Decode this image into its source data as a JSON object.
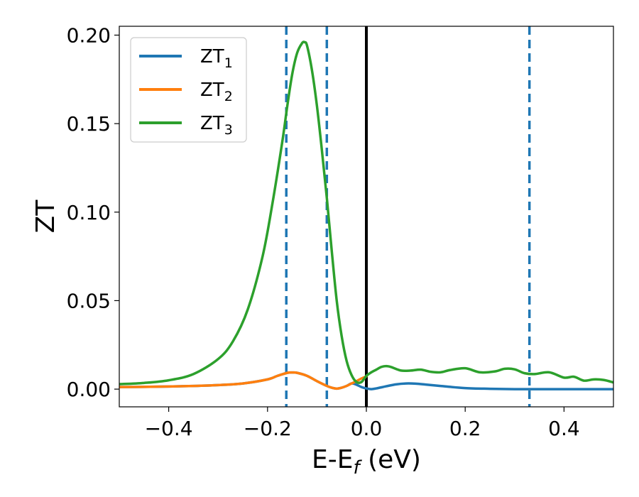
{
  "chart_data": {
    "type": "line",
    "xlabel": "E-E",
    "xlabel_subscript": "f",
    "xlabel_unit": " (eV)",
    "ylabel": "ZT",
    "xlim": [
      -0.5,
      0.5
    ],
    "ylim": [
      -0.01,
      0.205
    ],
    "x_ticks": [
      -0.4,
      -0.2,
      0.0,
      0.2,
      0.4
    ],
    "x_tick_labels": [
      "−0.4",
      "−0.2",
      "0.0",
      "0.2",
      "0.4"
    ],
    "y_ticks": [
      0.0,
      0.05,
      0.1,
      0.15,
      0.2
    ],
    "y_tick_labels": [
      "0.00",
      "0.05",
      "0.10",
      "0.15",
      "0.20"
    ],
    "grid": false,
    "legend_position": "top-left",
    "vertical_solid_lines": [
      {
        "x": 0.0,
        "color": "#000000"
      }
    ],
    "vertical_dashed_lines": [
      {
        "x": -0.162,
        "color": "#1f77b4"
      },
      {
        "x": -0.08,
        "color": "#1f77b4"
      },
      {
        "x": 0.33,
        "color": "#1f77b4"
      }
    ],
    "series": [
      {
        "name": "ZT",
        "subscript": "1",
        "color": "#1f77b4",
        "x": [
          -0.5,
          -0.45,
          -0.4,
          -0.35,
          -0.3,
          -0.25,
          -0.2,
          -0.18,
          -0.16,
          -0.15,
          -0.14,
          -0.12,
          -0.1,
          -0.08,
          -0.07,
          -0.06,
          -0.05,
          -0.04,
          -0.03,
          -0.02,
          -0.01,
          0.0,
          0.01,
          0.02,
          0.04,
          0.06,
          0.08,
          0.1,
          0.12,
          0.15,
          0.2,
          0.25,
          0.3,
          0.35,
          0.4,
          0.45,
          0.5
        ],
        "y": [
          0.0012,
          0.0013,
          0.0015,
          0.0018,
          0.0023,
          0.0032,
          0.0055,
          0.0075,
          0.0092,
          0.0094,
          0.0092,
          0.0075,
          0.0045,
          0.0018,
          0.0008,
          0.0003,
          0.0008,
          0.0018,
          0.0032,
          0.0025,
          0.0012,
          0.0004,
          0.0,
          0.0004,
          0.0016,
          0.0027,
          0.0032,
          0.0031,
          0.0026,
          0.0018,
          0.0006,
          0.0002,
          0.0,
          0.0,
          0.0,
          0.0,
          0.0
        ]
      },
      {
        "name": "ZT",
        "subscript": "2",
        "color": "#ff7f0e",
        "x": [
          -0.5,
          -0.45,
          -0.4,
          -0.35,
          -0.3,
          -0.25,
          -0.2,
          -0.18,
          -0.16,
          -0.15,
          -0.14,
          -0.12,
          -0.1,
          -0.08,
          -0.07,
          -0.06,
          -0.05,
          -0.04,
          -0.03,
          -0.02,
          -0.01,
          0.0
        ],
        "y": [
          0.0012,
          0.0013,
          0.0015,
          0.0018,
          0.0023,
          0.0032,
          0.0055,
          0.0075,
          0.0092,
          0.0094,
          0.0092,
          0.0075,
          0.0045,
          0.0018,
          0.0008,
          0.0003,
          0.0008,
          0.0018,
          0.0032,
          0.0045,
          0.006,
          0.0072
        ]
      },
      {
        "name": "ZT",
        "subscript": "3",
        "color": "#2ca02c",
        "x": [
          -0.5,
          -0.45,
          -0.4,
          -0.35,
          -0.3,
          -0.27,
          -0.24,
          -0.21,
          -0.19,
          -0.17,
          -0.16,
          -0.15,
          -0.14,
          -0.13,
          -0.125,
          -0.12,
          -0.11,
          -0.1,
          -0.09,
          -0.08,
          -0.07,
          -0.06,
          -0.05,
          -0.04,
          -0.03,
          -0.02,
          -0.01,
          0.0,
          0.01,
          0.02,
          0.03,
          0.04,
          0.05,
          0.07,
          0.09,
          0.11,
          0.13,
          0.15,
          0.17,
          0.2,
          0.23,
          0.26,
          0.28,
          0.3,
          0.32,
          0.34,
          0.37,
          0.4,
          0.42,
          0.44,
          0.46,
          0.48,
          0.5
        ],
        "y": [
          0.0028,
          0.0035,
          0.005,
          0.0085,
          0.017,
          0.027,
          0.045,
          0.075,
          0.105,
          0.14,
          0.16,
          0.178,
          0.19,
          0.1955,
          0.196,
          0.194,
          0.18,
          0.16,
          0.135,
          0.108,
          0.078,
          0.05,
          0.03,
          0.016,
          0.008,
          0.004,
          0.004,
          0.0075,
          0.0095,
          0.011,
          0.0125,
          0.013,
          0.0125,
          0.0105,
          0.0105,
          0.011,
          0.0098,
          0.0095,
          0.0108,
          0.0118,
          0.0095,
          0.01,
          0.0115,
          0.0112,
          0.009,
          0.0085,
          0.0095,
          0.0065,
          0.007,
          0.0048,
          0.0055,
          0.0052,
          0.0038
        ]
      }
    ]
  }
}
